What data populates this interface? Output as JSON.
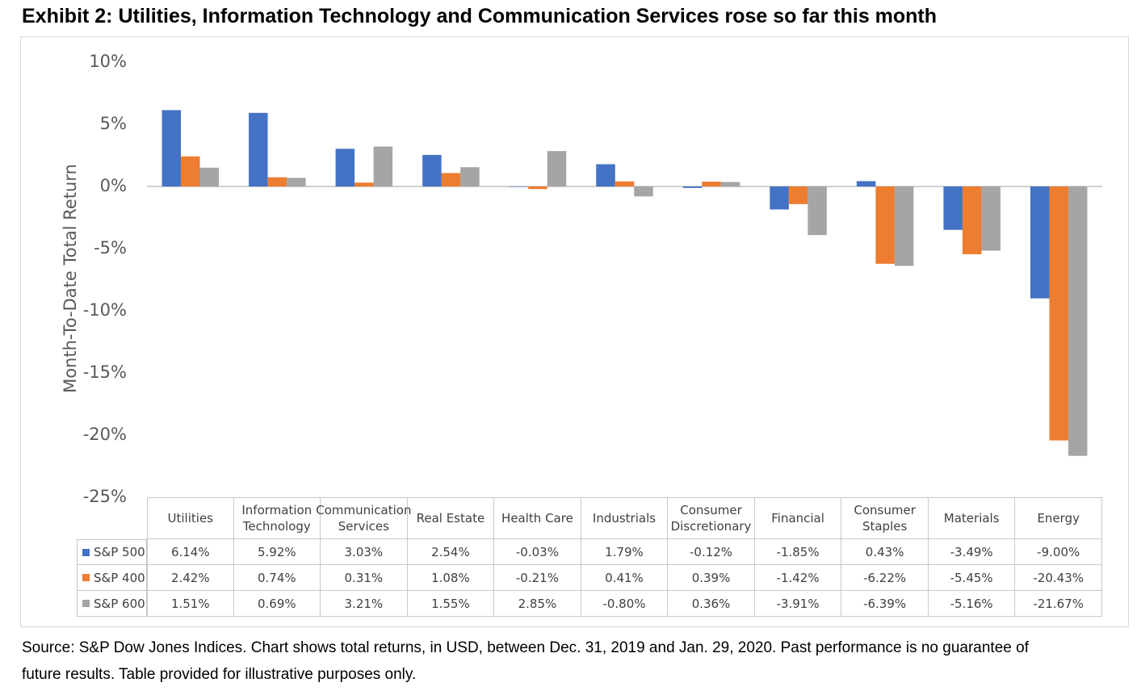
{
  "chart_data": {
    "type": "bar",
    "title": "Exhibit 2: Utilities, Information Technology and Communication Services rose so far this month",
    "y_label": "Month-To-Date Total Return",
    "categories": [
      "Utilities",
      "Information Technology",
      "Communication Services",
      "Real Estate",
      "Health Care",
      "Industrials",
      "Consumer Discretionary",
      "Financial",
      "Consumer Staples",
      "Materials",
      "Energy"
    ],
    "series": [
      {
        "name": "S&P 500",
        "color": "#4472c4",
        "values": [
          6.14,
          5.92,
          3.03,
          2.54,
          -0.03,
          1.79,
          -0.12,
          -1.85,
          0.43,
          -3.49,
          -9.0
        ],
        "value_labels": [
          "6.14%",
          "5.92%",
          "3.03%",
          "2.54%",
          "-0.03%",
          "1.79%",
          "-0.12%",
          "-1.85%",
          "0.43%",
          "-3.49%",
          "-9.00%"
        ]
      },
      {
        "name": "S&P 400",
        "color": "#ed7d31",
        "values": [
          2.42,
          0.74,
          0.31,
          1.08,
          -0.21,
          0.41,
          0.39,
          -1.42,
          -6.22,
          -5.45,
          -20.43
        ],
        "value_labels": [
          "2.42%",
          "0.74%",
          "0.31%",
          "1.08%",
          "-0.21%",
          "0.41%",
          "0.39%",
          "-1.42%",
          "-6.22%",
          "-5.45%",
          "-20.43%"
        ]
      },
      {
        "name": "S&P 600",
        "color": "#a5a5a5",
        "values": [
          1.51,
          0.69,
          3.21,
          1.55,
          2.85,
          -0.8,
          0.36,
          -3.91,
          -6.39,
          -5.16,
          -21.67
        ],
        "value_labels": [
          "1.51%",
          "0.69%",
          "3.21%",
          "1.55%",
          "2.85%",
          "-0.80%",
          "0.36%",
          "-3.91%",
          "-6.39%",
          "-5.16%",
          "-21.67%"
        ]
      }
    ],
    "ylim": [
      -25,
      10
    ],
    "yticks": [
      {
        "value": 10,
        "label": "10%"
      },
      {
        "value": 5,
        "label": "5%"
      },
      {
        "value": 0,
        "label": "0%"
      },
      {
        "value": -5,
        "label": "-5%"
      },
      {
        "value": -10,
        "label": "-10%"
      },
      {
        "value": -15,
        "label": "-15%"
      },
      {
        "value": -20,
        "label": "-20%"
      },
      {
        "value": -25,
        "label": "-25%"
      }
    ],
    "grid": false,
    "source": "Source:  S&P Dow Jones Indices.  Chart shows total returns, in USD, between Dec. 31, 2019 and Jan. 29, 2020.  Past performance is no guarantee of future results.  Table provided for illustrative purposes only."
  }
}
